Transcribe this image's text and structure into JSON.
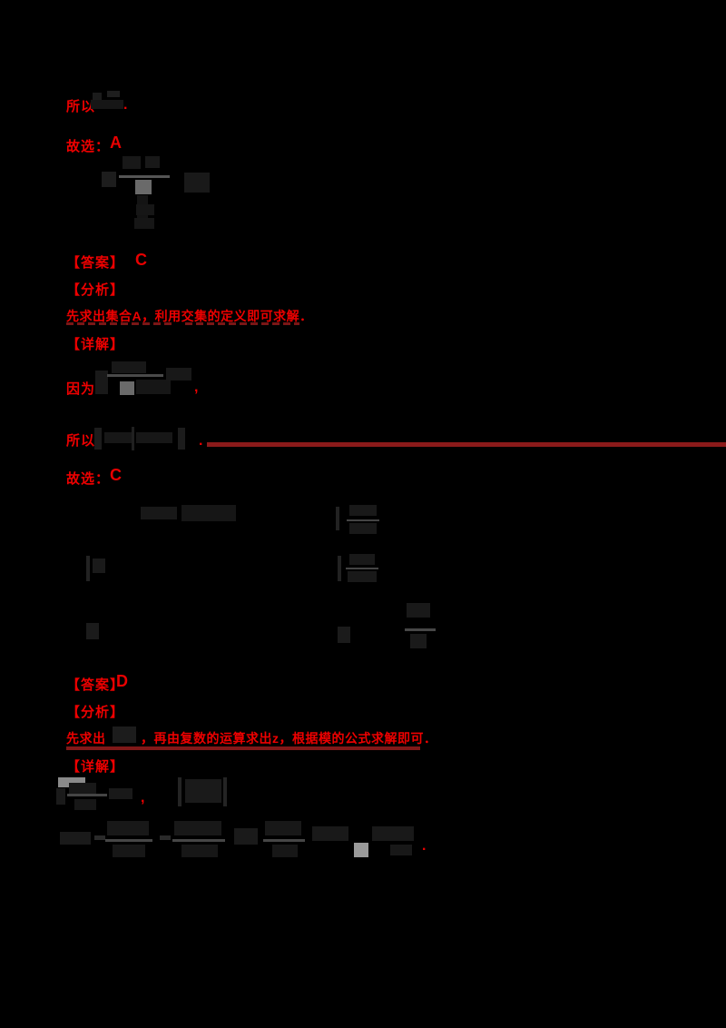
{
  "page": {
    "background": "#000000",
    "accent_red": "#ee0000",
    "underline_red": "#7a1616",
    "rule_red": "#8b1a1a"
  },
  "solution1": {
    "tail_prefix": "所以",
    "tail_period": ".",
    "conclusion_label": "故选：",
    "answer": "A"
  },
  "solution2": {
    "answer_label": "【答案】",
    "answer": "C",
    "analysis_label": "【分析】",
    "analysis_text": "先求出集合A，利用交集的定义即可求解．",
    "detail_label": "【详解】",
    "because": "因为",
    "because_comma": ",",
    "so": "所以",
    "so_period": ".",
    "conclusion_label": "故选：",
    "conclusion_answer": "C"
  },
  "solution3": {
    "answer_label": "【答案】",
    "answer": "D",
    "analysis_label": "【分析】",
    "analysis_prefix": "先求出",
    "analysis_suffix": "，再由复数的运算求出z，根据模的公式求解即可．",
    "detail_label": "【详解】",
    "detail_comma": ",",
    "detail_period": "."
  }
}
